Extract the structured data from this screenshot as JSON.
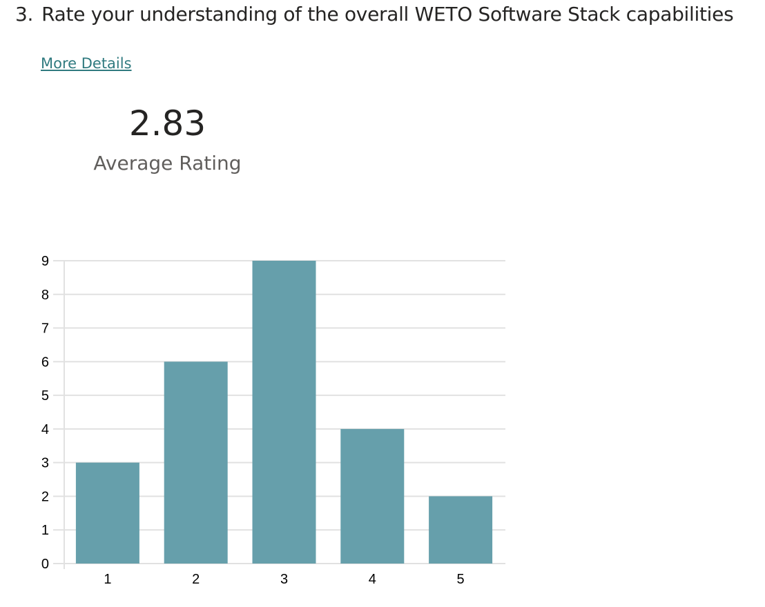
{
  "question": {
    "number": "3.",
    "text": "Rate your understanding of the overall WETO Software Stack capabilities"
  },
  "more_details_label": "More Details",
  "average": {
    "value": "2.83",
    "label": "Average Rating"
  },
  "chart_data": {
    "type": "bar",
    "categories": [
      "1",
      "2",
      "3",
      "4",
      "5"
    ],
    "values": [
      3,
      6,
      9,
      4,
      2
    ],
    "ylim": [
      0,
      9
    ],
    "yticks": [
      "0",
      "1",
      "2",
      "3",
      "4",
      "5",
      "6",
      "7",
      "8",
      "9"
    ],
    "grid": true,
    "color": "#669fab"
  }
}
